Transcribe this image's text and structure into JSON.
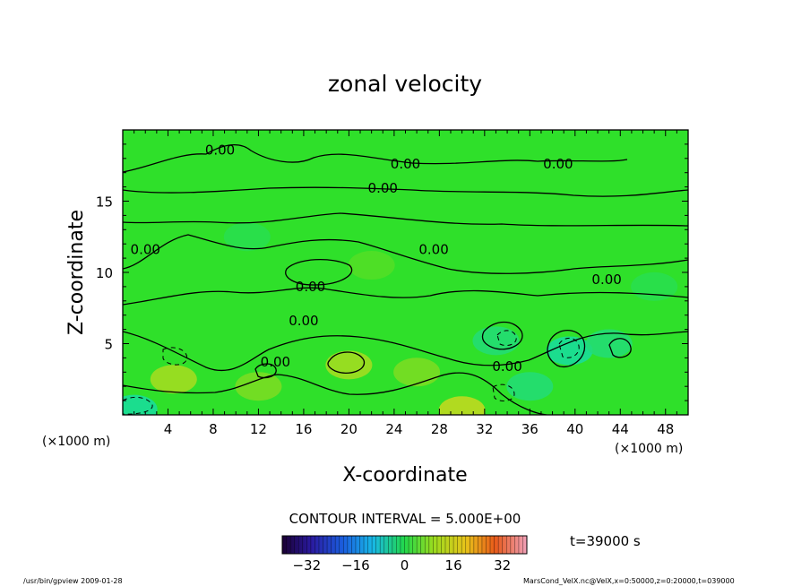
{
  "chart_data": {
    "type": "heatmap",
    "title": "zonal velocity",
    "xlabel": "X-coordinate",
    "ylabel": "Z-coordinate",
    "x_unit": "(×1000 m)",
    "y_unit": "(×1000 m)",
    "xlim": [
      0,
      50
    ],
    "ylim": [
      0,
      20
    ],
    "x_ticks": [
      4,
      8,
      12,
      16,
      20,
      24,
      28,
      32,
      36,
      40,
      44,
      48
    ],
    "y_ticks": [
      5,
      10,
      15
    ],
    "contour_interval_text": "CONTOUR INTERVAL = 5.000E+00",
    "time_text": "t=39000 s",
    "colorbar": {
      "range": [
        -40,
        40
      ],
      "ticks": [
        -32,
        -16,
        0,
        16,
        32
      ],
      "colormap": "rainbow"
    },
    "contour_labels": [
      {
        "text": "0.00",
        "x": 8.6,
        "z": 18.6
      },
      {
        "text": "0.00",
        "x": 25.0,
        "z": 17.6
      },
      {
        "text": "0.00",
        "x": 38.5,
        "z": 17.6
      },
      {
        "text": "0.00",
        "x": 23.0,
        "z": 15.9
      },
      {
        "text": "0.00",
        "x": 2.0,
        "z": 11.6
      },
      {
        "text": "0.00",
        "x": 27.5,
        "z": 11.6
      },
      {
        "text": "0.00",
        "x": 42.8,
        "z": 9.5
      },
      {
        "text": "0.00",
        "x": 16.6,
        "z": 9.0
      },
      {
        "text": "0.00",
        "x": 16.0,
        "z": 6.6
      },
      {
        "text": "0.00",
        "x": 13.5,
        "z": 3.7
      },
      {
        "text": "0.00",
        "x": 34.0,
        "z": 3.4
      }
    ],
    "features": [
      {
        "x": 33.0,
        "z": 5.2,
        "value": -6
      },
      {
        "x": 39.5,
        "z": 4.5,
        "value": -10
      },
      {
        "x": 43.0,
        "z": 5.0,
        "value": -6
      },
      {
        "x": 1.0,
        "z": 0.4,
        "value": -12
      },
      {
        "x": 4.5,
        "z": 2.5,
        "value": 8
      },
      {
        "x": 12.0,
        "z": 2.0,
        "value": 6
      },
      {
        "x": 20.0,
        "z": 3.5,
        "value": 9
      },
      {
        "x": 26.0,
        "z": 3.0,
        "value": 4
      },
      {
        "x": 30.0,
        "z": 0.3,
        "value": 14
      },
      {
        "x": 22.0,
        "z": 10.5,
        "value": 2
      },
      {
        "x": 11.0,
        "z": 12.5,
        "value": -2
      },
      {
        "x": 47.0,
        "z": 9.0,
        "value": -2
      },
      {
        "x": 36.0,
        "z": 2.0,
        "value": -5
      }
    ]
  },
  "footer": {
    "left_text": "/usr/bin/gpview   2009-01-28",
    "right_text": "MarsCond_VelX.nc@VelX,x=0:50000,z=0:20000,t=039000"
  },
  "colors": {
    "background_green": "#2fe02a",
    "contour": "#000000"
  }
}
